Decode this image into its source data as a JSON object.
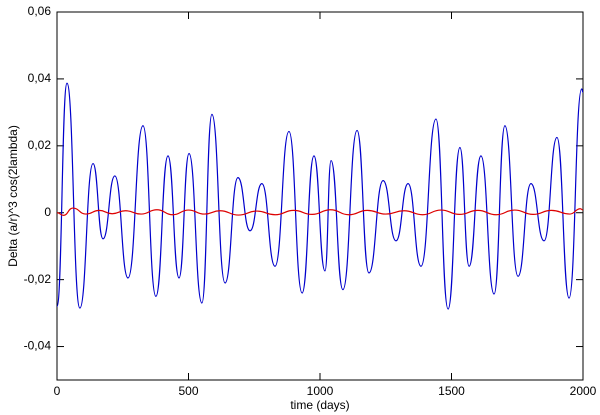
{
  "chart_data": {
    "type": "line",
    "xlabel": "time (days)",
    "ylabel": "Delta (a/r)^3 cos(2lambda)",
    "xlim": [
      0,
      2000
    ],
    "ylim": [
      -0.05,
      0.06
    ],
    "xticks": [
      0,
      500,
      1000,
      1500,
      2000
    ],
    "yticks": [
      {
        "value": -0.04,
        "label": "-0,04"
      },
      {
        "value": -0.02,
        "label": "-0,02"
      },
      0,
      {
        "value": 0.02,
        "label": "0,02"
      },
      {
        "value": 0.04,
        "label": "0,04"
      },
      {
        "value": 0.06,
        "label": "0,06"
      }
    ],
    "grid": false,
    "series": [
      {
        "color": "#0000cc",
        "x": [
          0,
          38,
          87,
          137,
          175,
          220,
          270,
          327,
          376,
          422,
          464,
          502,
          551,
          589,
          639,
          688,
          734,
          779,
          829,
          882,
          932,
          977,
          1019,
          1042,
          1087,
          1141,
          1186,
          1240,
          1289,
          1335,
          1384,
          1441,
          1487,
          1532,
          1567,
          1612,
          1662,
          1703,
          1753,
          1802,
          1852,
          1901,
          1947,
          1995,
          2000
        ],
        "values": [
          -0.028,
          0.0387,
          -0.0285,
          0.0147,
          -0.0078,
          0.011,
          -0.0195,
          0.026,
          -0.025,
          0.017,
          -0.0195,
          0.0177,
          -0.027,
          0.0294,
          -0.021,
          0.0105,
          -0.0054,
          0.0087,
          -0.016,
          0.0243,
          -0.024,
          0.017,
          -0.0174,
          0.0156,
          -0.023,
          0.0246,
          -0.018,
          0.0096,
          -0.0084,
          0.0087,
          -0.016,
          0.028,
          -0.0288,
          0.0195,
          -0.016,
          0.017,
          -0.0243,
          0.026,
          -0.019,
          0.0087,
          -0.0084,
          0.0225,
          -0.0255,
          0.037,
          0.036
        ]
      },
      {
        "color": "#dd0000",
        "x": [
          0,
          25,
          60,
          110,
          160,
          210,
          260,
          320,
          380,
          440,
          500,
          560,
          620,
          690,
          760,
          830,
          900,
          970,
          1040,
          1110,
          1180,
          1250,
          1320,
          1390,
          1460,
          1530,
          1600,
          1670,
          1740,
          1810,
          1880,
          1950,
          1990,
          2000
        ],
        "values": [
          0,
          -0.0008,
          0.0014,
          -0.0004,
          0.0007,
          -0.0003,
          0.0006,
          -0.0004,
          0.0009,
          -0.0006,
          0.0008,
          -0.0004,
          0.0006,
          -0.0007,
          0.0005,
          -0.0006,
          0.0007,
          -0.0005,
          0.0009,
          -0.0006,
          0.0007,
          -0.0004,
          0.0006,
          -0.0006,
          0.0008,
          -0.0005,
          0.0007,
          -0.0006,
          0.0008,
          -0.0005,
          0.0007,
          -0.0004,
          0.0012,
          0.0008
        ]
      }
    ]
  }
}
